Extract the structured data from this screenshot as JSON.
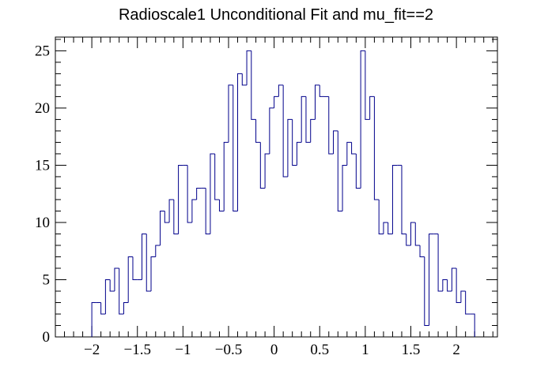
{
  "chart_data": {
    "type": "histogram",
    "title": "Radioscale1 Unconditional Fit and mu_fit==2",
    "xlabel": "",
    "ylabel": "",
    "xlim": [
      -2.4,
      2.45
    ],
    "ylim": [
      0,
      26.2
    ],
    "bin_width": 0.05,
    "x_start": -2.0,
    "values": [
      3,
      3,
      2,
      5,
      4,
      6,
      2,
      3,
      7,
      5,
      5,
      9,
      4,
      7,
      8,
      11,
      10,
      12,
      9,
      15,
      15,
      10,
      12,
      13,
      13,
      9,
      16,
      12,
      11,
      17,
      22,
      11,
      23,
      22,
      25,
      19,
      17,
      13,
      16,
      20,
      21,
      22,
      14,
      19,
      15,
      17,
      21,
      17,
      19,
      22,
      21,
      21,
      16,
      18,
      11,
      15,
      17,
      16,
      13,
      25,
      19,
      21,
      12,
      9,
      10,
      9,
      15,
      15,
      9,
      8,
      10,
      8,
      7,
      1,
      9,
      9,
      4,
      5,
      4,
      6,
      3,
      4,
      2,
      2
    ],
    "x_ticks": [
      "−2",
      "−1.5",
      "−1",
      "−0.5",
      "0",
      "0.5",
      "1",
      "1.5",
      "2"
    ],
    "x_tick_values": [
      -2,
      -1.5,
      -1,
      -0.5,
      0,
      0.5,
      1,
      1.5,
      2
    ],
    "y_ticks": [
      "0",
      "5",
      "10",
      "15",
      "20",
      "25"
    ],
    "y_tick_values": [
      0,
      5,
      10,
      15,
      20,
      25
    ],
    "line_color": "#00008b",
    "axis_color": "#000000",
    "grid": false,
    "legend": "none"
  }
}
